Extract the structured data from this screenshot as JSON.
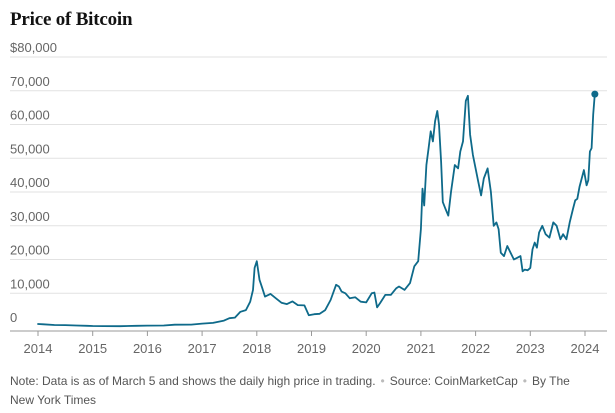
{
  "colors": {
    "line": "#0e6a8a",
    "grid": "#e2e2e2",
    "axis": "#999999"
  },
  "footnote": {
    "note": "Note: Data is as of March 5 and shows the daily high price in trading.",
    "source": "Source: CoinMarketCap",
    "credit": "By The New York Times"
  },
  "chart_data": {
    "type": "line",
    "title": "Price of Bitcoin",
    "xlabel": "",
    "ylabel": "",
    "xlim": [
      2014.0,
      2024.35
    ],
    "ylim": [
      0,
      80000
    ],
    "grid": true,
    "y_ticks": [
      {
        "value": 0,
        "label": "0"
      },
      {
        "value": 10000,
        "label": "10,000"
      },
      {
        "value": 20000,
        "label": "20,000"
      },
      {
        "value": 30000,
        "label": "30,000"
      },
      {
        "value": 40000,
        "label": "40,000"
      },
      {
        "value": 50000,
        "label": "50,000"
      },
      {
        "value": 60000,
        "label": "60,000"
      },
      {
        "value": 70000,
        "label": "70,000"
      },
      {
        "value": 80000,
        "label": "$80,000"
      }
    ],
    "x_ticks": [
      {
        "value": 2014,
        "label": "2014"
      },
      {
        "value": 2015,
        "label": "2015"
      },
      {
        "value": 2016,
        "label": "2016"
      },
      {
        "value": 2017,
        "label": "2017"
      },
      {
        "value": 2018,
        "label": "2018"
      },
      {
        "value": 2019,
        "label": "2019"
      },
      {
        "value": 2020,
        "label": "2020"
      },
      {
        "value": 2021,
        "label": "2021"
      },
      {
        "value": 2022,
        "label": "2022"
      },
      {
        "value": 2023,
        "label": "2023"
      },
      {
        "value": 2024,
        "label": "2024"
      }
    ],
    "series": [
      {
        "endpoint_marker": true,
        "x": [
          2014.0,
          2014.1,
          2014.3,
          2014.5,
          2014.7,
          2014.9,
          2015.0,
          2015.2,
          2015.5,
          2015.8,
          2016.0,
          2016.3,
          2016.5,
          2016.8,
          2017.0,
          2017.2,
          2017.4,
          2017.5,
          2017.6,
          2017.7,
          2017.8,
          2017.88,
          2017.93,
          2017.96,
          2018.0,
          2018.05,
          2018.1,
          2018.15,
          2018.25,
          2018.35,
          2018.45,
          2018.55,
          2018.65,
          2018.75,
          2018.87,
          2018.95,
          2019.05,
          2019.15,
          2019.25,
          2019.35,
          2019.45,
          2019.5,
          2019.55,
          2019.62,
          2019.7,
          2019.8,
          2019.9,
          2020.0,
          2020.1,
          2020.15,
          2020.2,
          2020.25,
          2020.35,
          2020.45,
          2020.55,
          2020.6,
          2020.7,
          2020.8,
          2020.88,
          2020.95,
          2021.0,
          2021.03,
          2021.06,
          2021.1,
          2021.14,
          2021.18,
          2021.22,
          2021.26,
          2021.3,
          2021.33,
          2021.37,
          2021.4,
          2021.45,
          2021.5,
          2021.55,
          2021.62,
          2021.68,
          2021.72,
          2021.77,
          2021.82,
          2021.86,
          2021.9,
          2021.95,
          2022.0,
          2022.05,
          2022.1,
          2022.15,
          2022.22,
          2022.28,
          2022.33,
          2022.38,
          2022.42,
          2022.46,
          2022.52,
          2022.58,
          2022.64,
          2022.7,
          2022.76,
          2022.82,
          2022.86,
          2022.9,
          2022.95,
          2023.0,
          2023.04,
          2023.08,
          2023.12,
          2023.16,
          2023.22,
          2023.28,
          2023.35,
          2023.42,
          2023.48,
          2023.55,
          2023.6,
          2023.66,
          2023.72,
          2023.78,
          2023.82,
          2023.86,
          2023.9,
          2023.94,
          2023.98,
          2024.03,
          2024.06,
          2024.09,
          2024.12,
          2024.15,
          2024.18
        ],
        "y": [
          900,
          800,
          600,
          550,
          450,
          350,
          300,
          270,
          250,
          350,
          420,
          430,
          680,
          720,
          1000,
          1200,
          1900,
          2600,
          2800,
          4500,
          5000,
          7500,
          11000,
          17500,
          19500,
          14000,
          11500,
          9000,
          9800,
          8500,
          7200,
          6800,
          7600,
          6500,
          6400,
          3500,
          3800,
          3900,
          5000,
          8000,
          12500,
          12000,
          10500,
          10000,
          8500,
          8800,
          7500,
          7300,
          10000,
          10200,
          5800,
          7000,
          9500,
          9500,
          11500,
          12000,
          11000,
          13000,
          18000,
          19500,
          29000,
          41000,
          36000,
          48000,
          53000,
          58000,
          55000,
          61000,
          64000,
          60000,
          49000,
          37000,
          35000,
          33000,
          40000,
          48000,
          47000,
          52000,
          55000,
          67000,
          68500,
          57000,
          51000,
          47000,
          43000,
          39000,
          44000,
          47000,
          40000,
          30000,
          31000,
          29000,
          22000,
          21000,
          24000,
          22000,
          20000,
          20500,
          21000,
          16500,
          17000,
          16800,
          17500,
          23000,
          25000,
          23500,
          28000,
          30000,
          27500,
          26500,
          31000,
          30000,
          26000,
          27500,
          26000,
          31000,
          35000,
          37500,
          38000,
          41500,
          44000,
          46500,
          42000,
          43500,
          52000,
          53000,
          63000,
          69000
        ]
      }
    ]
  }
}
